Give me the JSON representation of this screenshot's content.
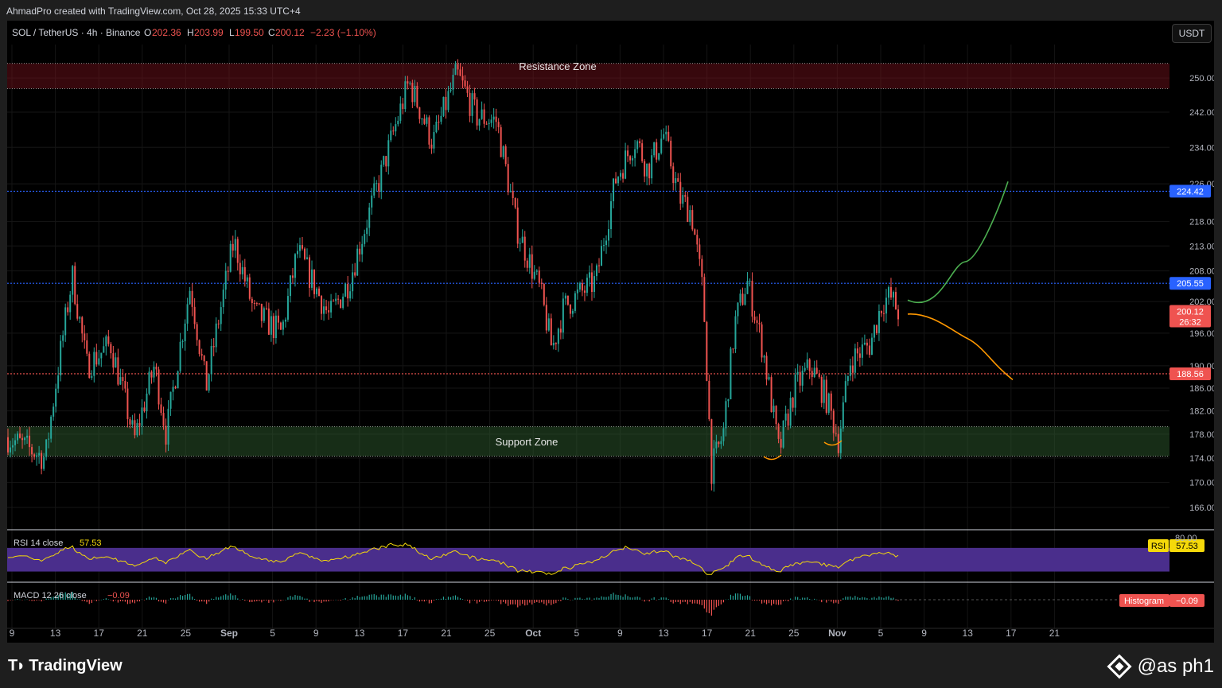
{
  "header": {
    "credit": "AhmadPro created with TradingView.com, Oct 28, 2025 15:33 UTC+4"
  },
  "legend": {
    "symbol": "SOL / TetherUS · 4h · Binance",
    "o_label": "O",
    "o_value": "202.36",
    "h_label": "H",
    "h_value": "203.99",
    "l_label": "L",
    "l_value": "199.50",
    "c_label": "C",
    "c_value": "200.12",
    "change": "−2.23 (−1.10%)"
  },
  "currency_button": "USDT",
  "zones": {
    "resistance_label": "Resistance Zone",
    "support_label": "Support Zone"
  },
  "rsi_legend": {
    "label": "RSI 14 close",
    "value": "57.53",
    "tag": "RSI",
    "tag_value": "57.53",
    "level": "80.00"
  },
  "macd_legend": {
    "label": "MACD 12 26 close",
    "value": "−0.09",
    "tag": "Histogram",
    "tag_value": "−0.09"
  },
  "footer": {
    "brand": "TradingView",
    "watermark": "@as  ph1"
  },
  "colors": {
    "up": "#26a69a",
    "down": "#ef5350",
    "blue": "#2962ff",
    "bull_path": "#4caf50",
    "bear_path": "#ff9800",
    "rsi": "#f5d90a",
    "rsi_band": "#4a2e8c"
  },
  "chart_data": {
    "type": "candlestick",
    "symbol": "SOL / TetherUS",
    "timeframe": "4h",
    "exchange": "Binance",
    "y_axis": {
      "scale": "log",
      "ylim": [
        163,
        255
      ],
      "ticks": [
        "250.00",
        "242.00",
        "234.00",
        "226.00",
        "218.00",
        "213.00",
        "208.00",
        "202.00",
        "196.00",
        "190.00",
        "186.00",
        "182.00",
        "178.00",
        "174.00",
        "170.00",
        "166.00"
      ]
    },
    "x_axis": {
      "ticks": [
        "9",
        "13",
        "17",
        "21",
        "25",
        "Sep",
        "5",
        "9",
        "13",
        "17",
        "21",
        "25",
        "Oct",
        "5",
        "9",
        "13",
        "17",
        "21",
        "25",
        "Nov",
        "5",
        "9",
        "13",
        "17",
        "21"
      ]
    },
    "zones": [
      {
        "name": "Resistance Zone",
        "from": 247.5,
        "to": 253.5
      },
      {
        "name": "Support Zone",
        "from": 174.3,
        "to": 179.3
      }
    ],
    "price_lines": [
      {
        "value": 224.42,
        "label": "224.42",
        "color": "#2962ff",
        "style": "dotted"
      },
      {
        "value": 205.55,
        "label": "205.55",
        "color": "#2962ff",
        "style": "dotted"
      },
      {
        "value": 188.56,
        "label": "188.56",
        "color": "#ef5350",
        "style": "dotted"
      }
    ],
    "last_price": {
      "value": 200.12,
      "label": "200.12",
      "countdown": "26:32"
    },
    "ohlc_last": {
      "open": 202.36,
      "high": 203.99,
      "low": 199.5,
      "close": 200.12
    },
    "path_anchors": [
      {
        "x": 0,
        "y": 177.5
      },
      {
        "x": 48,
        "y": 174
      },
      {
        "x": 82,
        "y": 207
      },
      {
        "x": 100,
        "y": 190
      },
      {
        "x": 130,
        "y": 194
      },
      {
        "x": 160,
        "y": 177
      },
      {
        "x": 185,
        "y": 190
      },
      {
        "x": 200,
        "y": 178
      },
      {
        "x": 230,
        "y": 205
      },
      {
        "x": 250,
        "y": 186
      },
      {
        "x": 285,
        "y": 214
      },
      {
        "x": 310,
        "y": 200
      },
      {
        "x": 345,
        "y": 196
      },
      {
        "x": 365,
        "y": 212
      },
      {
        "x": 405,
        "y": 199
      },
      {
        "x": 430,
        "y": 206
      },
      {
        "x": 470,
        "y": 228
      },
      {
        "x": 505,
        "y": 249
      },
      {
        "x": 535,
        "y": 235
      },
      {
        "x": 565,
        "y": 251
      },
      {
        "x": 590,
        "y": 241
      },
      {
        "x": 615,
        "y": 240
      },
      {
        "x": 640,
        "y": 217
      },
      {
        "x": 670,
        "y": 204
      },
      {
        "x": 685,
        "y": 193
      },
      {
        "x": 700,
        "y": 201
      },
      {
        "x": 740,
        "y": 206
      },
      {
        "x": 765,
        "y": 227
      },
      {
        "x": 790,
        "y": 236
      },
      {
        "x": 805,
        "y": 229
      },
      {
        "x": 825,
        "y": 237
      },
      {
        "x": 845,
        "y": 223
      },
      {
        "x": 860,
        "y": 220
      },
      {
        "x": 875,
        "y": 203
      },
      {
        "x": 885,
        "y": 172
      },
      {
        "x": 900,
        "y": 178
      },
      {
        "x": 915,
        "y": 198
      },
      {
        "x": 930,
        "y": 206
      },
      {
        "x": 950,
        "y": 193
      },
      {
        "x": 970,
        "y": 175
      },
      {
        "x": 990,
        "y": 186
      },
      {
        "x": 1010,
        "y": 190
      },
      {
        "x": 1030,
        "y": 184
      },
      {
        "x": 1045,
        "y": 177
      },
      {
        "x": 1060,
        "y": 191
      },
      {
        "x": 1085,
        "y": 194
      },
      {
        "x": 1100,
        "y": 202
      },
      {
        "x": 1110,
        "y": 203
      },
      {
        "x": 1120,
        "y": 200.12
      }
    ],
    "projections": [
      {
        "direction": "bullish",
        "target": 226.5,
        "color": "#4caf50"
      },
      {
        "direction": "bearish",
        "target": 187.5,
        "color": "#ff9800"
      }
    ],
    "rsi": {
      "period": 14,
      "source": "close",
      "value": 57.53,
      "band": [
        30,
        70
      ],
      "level_label": 80
    },
    "macd": {
      "fast": 12,
      "slow": 26,
      "source": "close",
      "histogram": -0.09
    }
  }
}
